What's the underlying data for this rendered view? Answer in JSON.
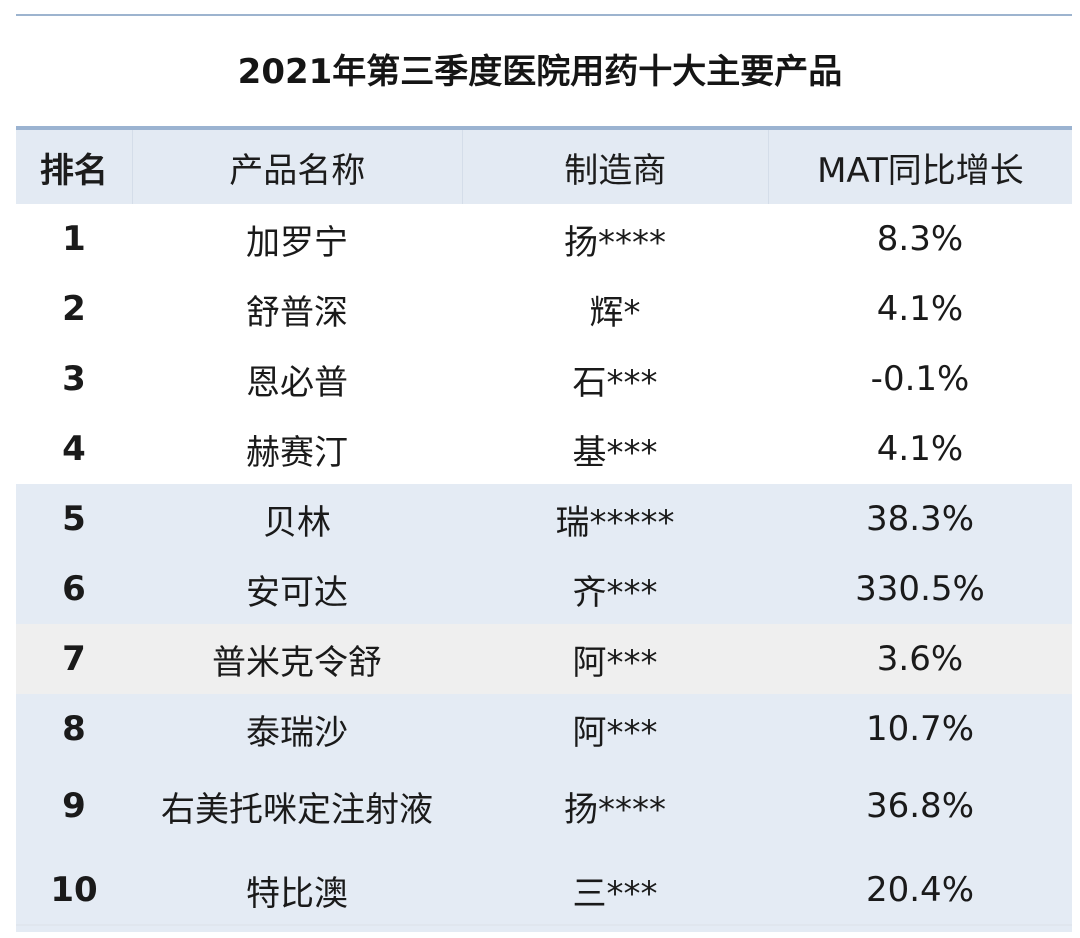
{
  "title": "2021年第三季度医院用药十大主要产品",
  "headers": {
    "rank": "排名",
    "product": "产品名称",
    "manufacturer": "制造商",
    "growth": "MAT同比增长"
  },
  "rows": [
    {
      "rank": "1",
      "product": "加罗宁",
      "manufacturer": "扬****",
      "growth": "8.3%"
    },
    {
      "rank": "2",
      "product": "舒普深",
      "manufacturer": "辉*",
      "growth": "4.1%"
    },
    {
      "rank": "3",
      "product": "恩必普",
      "manufacturer": "石***",
      "growth": "-0.1%"
    },
    {
      "rank": "4",
      "product": "赫赛汀",
      "manufacturer": "基***",
      "growth": "4.1%"
    },
    {
      "rank": "5",
      "product": "贝林",
      "manufacturer": "瑞*****",
      "growth": "38.3%"
    },
    {
      "rank": "6",
      "product": "安可达",
      "manufacturer": "齐***",
      "growth": "330.5%"
    },
    {
      "rank": "7",
      "product": "普米克令舒",
      "manufacturer": "阿***",
      "growth": "3.6%"
    },
    {
      "rank": "8",
      "product": "泰瑞沙",
      "manufacturer": "阿***",
      "growth": "10.7%"
    },
    {
      "rank": "9",
      "product": "右美托咪定注射液",
      "manufacturer": "扬****",
      "growth": "36.8%"
    },
    {
      "rank": "10",
      "product": "特比澳",
      "manufacturer": "三***",
      "growth": "20.4%"
    }
  ],
  "colors": {
    "header_bg": "#e3eaf3",
    "band_blue": "#e4ebf4",
    "band_gray": "#efefef",
    "white": "#ffffff",
    "rule": "#9bb3d1"
  }
}
